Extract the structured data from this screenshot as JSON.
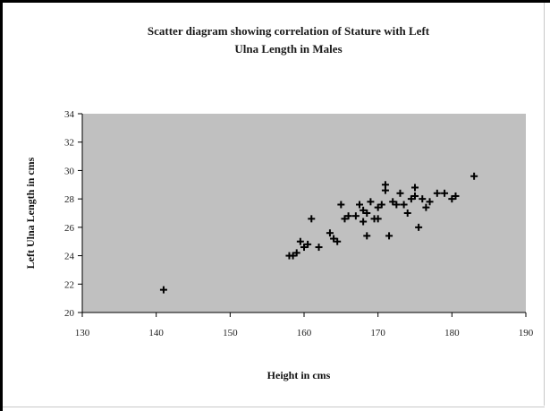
{
  "chart_data": {
    "type": "scatter",
    "title_lines": [
      "Scatter diagram showing correlation of Stature with Left",
      "Ulna Length in Males"
    ],
    "xlabel": "Height in cms",
    "ylabel": "Left Ulna Length in cms",
    "xlim": [
      130,
      190
    ],
    "ylim": [
      20,
      34
    ],
    "xticks": [
      130,
      140,
      150,
      160,
      170,
      180,
      190
    ],
    "yticks": [
      20,
      22,
      24,
      26,
      28,
      30,
      32,
      34
    ],
    "grid": false,
    "legend": "none",
    "colors": {
      "plot_background": "#c0c0c0",
      "marker": "#000000"
    },
    "marker": "plus",
    "points": [
      [
        141.0,
        21.6
      ],
      [
        158.0,
        24.0
      ],
      [
        158.5,
        24.0
      ],
      [
        159.0,
        24.2
      ],
      [
        159.5,
        25.0
      ],
      [
        160.0,
        24.6
      ],
      [
        160.5,
        24.8
      ],
      [
        161.0,
        26.6
      ],
      [
        162.0,
        24.6
      ],
      [
        163.5,
        25.6
      ],
      [
        164.0,
        25.2
      ],
      [
        164.5,
        25.0
      ],
      [
        165.0,
        27.6
      ],
      [
        165.5,
        26.6
      ],
      [
        166.0,
        26.8
      ],
      [
        167.0,
        26.8
      ],
      [
        167.5,
        27.6
      ],
      [
        168.0,
        27.2
      ],
      [
        168.0,
        26.4
      ],
      [
        168.5,
        27.0
      ],
      [
        168.5,
        25.4
      ],
      [
        169.0,
        27.8
      ],
      [
        169.5,
        26.6
      ],
      [
        170.0,
        27.4
      ],
      [
        170.0,
        26.6
      ],
      [
        170.5,
        27.6
      ],
      [
        171.0,
        29.0
      ],
      [
        171.0,
        28.6
      ],
      [
        171.5,
        25.4
      ],
      [
        172.0,
        27.8
      ],
      [
        172.5,
        27.6
      ],
      [
        173.0,
        28.4
      ],
      [
        173.5,
        27.6
      ],
      [
        174.0,
        27.0
      ],
      [
        174.5,
        28.0
      ],
      [
        175.0,
        28.8
      ],
      [
        175.0,
        28.2
      ],
      [
        175.5,
        26.0
      ],
      [
        176.0,
        28.0
      ],
      [
        176.5,
        27.4
      ],
      [
        177.0,
        27.8
      ],
      [
        178.0,
        28.4
      ],
      [
        179.0,
        28.4
      ],
      [
        180.0,
        28.0
      ],
      [
        180.5,
        28.2
      ],
      [
        183.0,
        29.6
      ]
    ]
  }
}
